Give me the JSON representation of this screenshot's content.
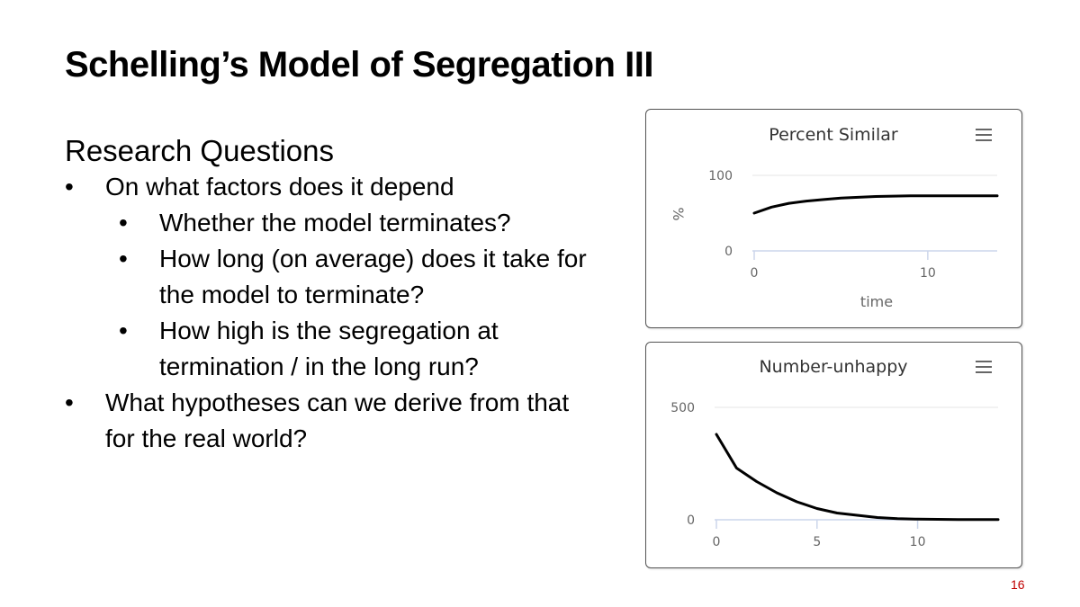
{
  "slide": {
    "title": "Schelling’s Model of Segregation III",
    "subtitle": "Research Questions",
    "bullets": [
      {
        "level": 1,
        "text": "On what factors does it depend"
      },
      {
        "level": 2,
        "text": "Whether the model terminates?"
      },
      {
        "level": 2,
        "text": "How long (on average) does it take for the model to terminate?"
      },
      {
        "level": 2,
        "text": "How high is the segregation at termination / in the long run?"
      },
      {
        "level": 1,
        "text": "What hypotheses can we derive from that for the real world?"
      }
    ],
    "bullet_glyph": "•",
    "page_number": "16"
  },
  "icons": {
    "chart_menu": "hamburger-menu-icon"
  },
  "colors": {
    "line": "#000000",
    "page_number": "#c00000",
    "axis": "#ccd6eb",
    "grid": "#e6e6e6"
  },
  "chart_data": [
    {
      "type": "line",
      "title": "Percent Similar",
      "xlabel": "time",
      "ylabel": "%",
      "ylim": [
        0,
        100
      ],
      "yticks": [
        "0",
        "100"
      ],
      "xticks": [
        "0",
        "10"
      ],
      "x": [
        0,
        1,
        2,
        3,
        4,
        5,
        6,
        7,
        8,
        9,
        10,
        11,
        12,
        13,
        14
      ],
      "values": [
        50,
        58,
        63,
        66,
        68,
        70,
        71,
        72,
        72.5,
        73,
        73,
        73,
        73,
        73,
        73
      ],
      "grid": true,
      "legend": "none"
    },
    {
      "type": "line",
      "title": "Number-unhappy",
      "xlabel": "",
      "ylabel": "",
      "ylim": [
        0,
        500
      ],
      "yticks": [
        "0",
        "500"
      ],
      "xticks": [
        "0",
        "5",
        "10"
      ],
      "x": [
        0,
        1,
        2,
        3,
        4,
        5,
        6,
        7,
        8,
        9,
        10,
        11,
        12,
        13,
        14
      ],
      "values": [
        380,
        230,
        170,
        120,
        80,
        50,
        30,
        20,
        10,
        5,
        3,
        2,
        1,
        1,
        1
      ],
      "grid": true,
      "legend": "none"
    }
  ]
}
